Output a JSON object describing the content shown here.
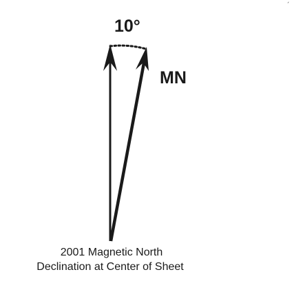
{
  "diagram": {
    "angle_label": "10°",
    "mn_label": "MN",
    "caption_line1": "2001 Magnetic North",
    "caption_line2": "Declination at Center of Sheet",
    "corner_mark": "´",
    "colors": {
      "ink": "#1a1a1a",
      "background": "#ffffff"
    }
  }
}
